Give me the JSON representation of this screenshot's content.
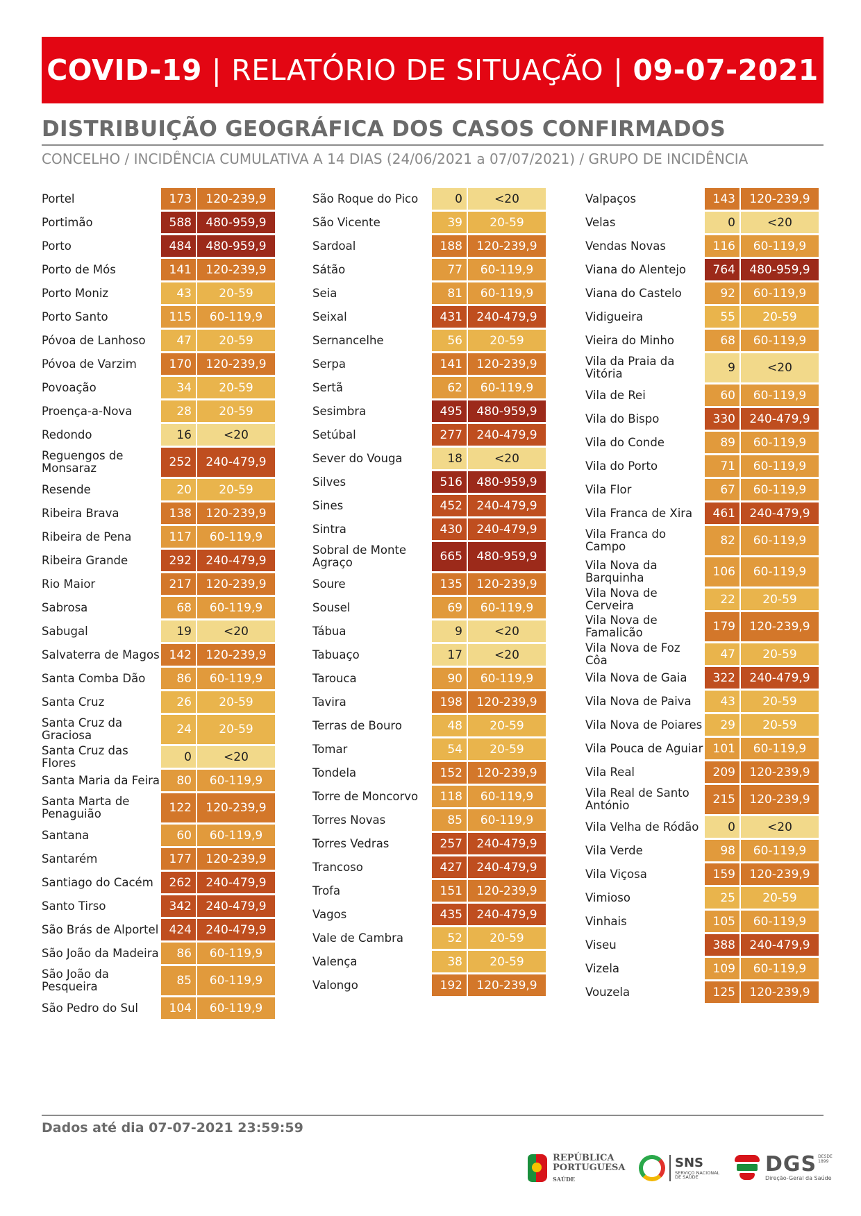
{
  "header": {
    "part1": "COVID-19",
    "sep": "|",
    "part2": "RELATÓRIO DE SITUAÇÃO",
    "part3": "09-07-2021"
  },
  "section": {
    "title": "DISTRIBUIÇÃO GEOGRÁFICA DOS CASOS CONFIRMADOS",
    "subtitle": "CONCELHO / INCIDÊNCIA CUMULATIVA A 14 DIAS (24/06/2021 a 07/07/2021) / GRUPO DE INCIDÊNCIA"
  },
  "colors": {
    "<20": {
      "bg": "#f2d98a",
      "fg": "#222222"
    },
    "20-59": {
      "bg": "#e9b44c",
      "fg": "#ffffff"
    },
    "60-119,9": {
      "bg": "#e19a3c",
      "fg": "#ffffff"
    },
    "120-239,9": {
      "bg": "#d3772a",
      "fg": "#ffffff"
    },
    "240-479,9": {
      "bg": "#bf4e1f",
      "fg": "#ffffff"
    },
    "480-959,9": {
      "bg": "#9c2a1a",
      "fg": "#ffffff"
    }
  },
  "columns": [
    {
      "rows": [
        {
          "name": "Portel",
          "value": "173",
          "group": "120-239,9"
        },
        {
          "name": "Portimão",
          "value": "588",
          "group": "480-959,9"
        },
        {
          "name": "Porto",
          "value": "484",
          "group": "480-959,9"
        },
        {
          "name": "Porto de Mós",
          "value": "141",
          "group": "120-239,9"
        },
        {
          "name": "Porto Moniz",
          "value": "43",
          "group": "20-59"
        },
        {
          "name": "Porto Santo",
          "value": "115",
          "group": "60-119,9"
        },
        {
          "name": "Póvoa de Lanhoso",
          "value": "47",
          "group": "20-59"
        },
        {
          "name": "Póvoa de Varzim",
          "value": "170",
          "group": "120-239,9"
        },
        {
          "name": "Povoação",
          "value": "34",
          "group": "20-59"
        },
        {
          "name": "Proença-a-Nova",
          "value": "28",
          "group": "20-59"
        },
        {
          "name": "Redondo",
          "value": "16",
          "group": "<20"
        },
        {
          "name": "Reguengos de Monsaraz",
          "value": "252",
          "group": "240-479,9",
          "tall": true
        },
        {
          "name": "Resende",
          "value": "20",
          "group": "20-59"
        },
        {
          "name": "Ribeira Brava",
          "value": "138",
          "group": "120-239,9"
        },
        {
          "name": "Ribeira de Pena",
          "value": "117",
          "group": "60-119,9"
        },
        {
          "name": "Ribeira Grande",
          "value": "292",
          "group": "240-479,9"
        },
        {
          "name": "Rio Maior",
          "value": "217",
          "group": "120-239,9"
        },
        {
          "name": "Sabrosa",
          "value": "68",
          "group": "60-119,9"
        },
        {
          "name": "Sabugal",
          "value": "19",
          "group": "<20"
        },
        {
          "name": "Salvaterra de Magos",
          "value": "142",
          "group": "120-239,9"
        },
        {
          "name": "Santa Comba Dão",
          "value": "86",
          "group": "60-119,9"
        },
        {
          "name": "Santa Cruz",
          "value": "26",
          "group": "20-59"
        },
        {
          "name": "Santa Cruz da Graciosa",
          "value": "24",
          "group": "20-59",
          "tall": true
        },
        {
          "name": "Santa Cruz das Flores",
          "value": "0",
          "group": "<20"
        },
        {
          "name": "Santa Maria da Feira",
          "value": "80",
          "group": "60-119,9"
        },
        {
          "name": "Santa Marta de Penaguião",
          "value": "122",
          "group": "120-239,9",
          "tall": true
        },
        {
          "name": "Santana",
          "value": "60",
          "group": "60-119,9"
        },
        {
          "name": "Santarém",
          "value": "177",
          "group": "120-239,9"
        },
        {
          "name": "Santiago do Cacém",
          "value": "262",
          "group": "240-479,9"
        },
        {
          "name": "Santo Tirso",
          "value": "342",
          "group": "240-479,9"
        },
        {
          "name": "São Brás de Alportel",
          "value": "424",
          "group": "240-479,9"
        },
        {
          "name": "São João da Madeira",
          "value": "86",
          "group": "60-119,9"
        },
        {
          "name": "São João da Pesqueira",
          "value": "85",
          "group": "60-119,9",
          "tall": true
        },
        {
          "name": "São Pedro do Sul",
          "value": "104",
          "group": "60-119,9"
        }
      ]
    },
    {
      "rows": [
        {
          "name": "São Roque do Pico",
          "value": "0",
          "group": "<20"
        },
        {
          "name": "São Vicente",
          "value": "39",
          "group": "20-59"
        },
        {
          "name": "Sardoal",
          "value": "188",
          "group": "120-239,9"
        },
        {
          "name": "Sátão",
          "value": "77",
          "group": "60-119,9"
        },
        {
          "name": "Seia",
          "value": "81",
          "group": "60-119,9"
        },
        {
          "name": "Seixal",
          "value": "431",
          "group": "240-479,9"
        },
        {
          "name": "Sernancelhe",
          "value": "56",
          "group": "20-59"
        },
        {
          "name": "Serpa",
          "value": "141",
          "group": "120-239,9"
        },
        {
          "name": "Sertã",
          "value": "62",
          "group": "60-119,9"
        },
        {
          "name": "Sesimbra",
          "value": "495",
          "group": "480-959,9"
        },
        {
          "name": "Setúbal",
          "value": "277",
          "group": "240-479,9"
        },
        {
          "name": "Sever do Vouga",
          "value": "18",
          "group": "<20"
        },
        {
          "name": "Silves",
          "value": "516",
          "group": "480-959,9"
        },
        {
          "name": "Sines",
          "value": "452",
          "group": "240-479,9"
        },
        {
          "name": "Sintra",
          "value": "430",
          "group": "240-479,9"
        },
        {
          "name": "Sobral de Monte Agraço",
          "value": "665",
          "group": "480-959,9",
          "tall": true
        },
        {
          "name": "Soure",
          "value": "135",
          "group": "120-239,9"
        },
        {
          "name": "Sousel",
          "value": "69",
          "group": "60-119,9"
        },
        {
          "name": "Tábua",
          "value": "9",
          "group": "<20"
        },
        {
          "name": "Tabuaço",
          "value": "17",
          "group": "<20"
        },
        {
          "name": "Tarouca",
          "value": "90",
          "group": "60-119,9"
        },
        {
          "name": "Tavira",
          "value": "198",
          "group": "120-239,9"
        },
        {
          "name": "Terras de Bouro",
          "value": "48",
          "group": "20-59"
        },
        {
          "name": "Tomar",
          "value": "54",
          "group": "20-59"
        },
        {
          "name": "Tondela",
          "value": "152",
          "group": "120-239,9"
        },
        {
          "name": "Torre de Moncorvo",
          "value": "118",
          "group": "60-119,9"
        },
        {
          "name": "Torres Novas",
          "value": "85",
          "group": "60-119,9"
        },
        {
          "name": "Torres Vedras",
          "value": "257",
          "group": "240-479,9"
        },
        {
          "name": "Trancoso",
          "value": "427",
          "group": "240-479,9"
        },
        {
          "name": "Trofa",
          "value": "151",
          "group": "120-239,9"
        },
        {
          "name": "Vagos",
          "value": "435",
          "group": "240-479,9"
        },
        {
          "name": "Vale de Cambra",
          "value": "52",
          "group": "20-59"
        },
        {
          "name": "Valença",
          "value": "38",
          "group": "20-59"
        },
        {
          "name": "Valongo",
          "value": "192",
          "group": "120-239,9"
        }
      ]
    },
    {
      "rows": [
        {
          "name": "Valpaços",
          "value": "143",
          "group": "120-239,9"
        },
        {
          "name": "Velas",
          "value": "0",
          "group": "<20"
        },
        {
          "name": "Vendas Novas",
          "value": "116",
          "group": "60-119,9"
        },
        {
          "name": "Viana do Alentejo",
          "value": "764",
          "group": "480-959,9"
        },
        {
          "name": "Viana do Castelo",
          "value": "92",
          "group": "60-119,9"
        },
        {
          "name": "Vidigueira",
          "value": "55",
          "group": "20-59"
        },
        {
          "name": "Vieira do Minho",
          "value": "68",
          "group": "60-119,9"
        },
        {
          "name": "Vila da Praia da Vitória",
          "value": "9",
          "group": "<20",
          "tall": true
        },
        {
          "name": "Vila de Rei",
          "value": "60",
          "group": "60-119,9"
        },
        {
          "name": "Vila do Bispo",
          "value": "330",
          "group": "240-479,9"
        },
        {
          "name": "Vila do Conde",
          "value": "89",
          "group": "60-119,9"
        },
        {
          "name": "Vila do Porto",
          "value": "71",
          "group": "60-119,9"
        },
        {
          "name": "Vila Flor",
          "value": "67",
          "group": "60-119,9"
        },
        {
          "name": "Vila Franca de Xira",
          "value": "461",
          "group": "240-479,9"
        },
        {
          "name": "Vila Franca do Campo",
          "value": "82",
          "group": "60-119,9",
          "tall": true
        },
        {
          "name": "Vila Nova da Barquinha",
          "value": "106",
          "group": "60-119,9",
          "tall": true
        },
        {
          "name": "Vila Nova de Cerveira",
          "value": "22",
          "group": "20-59"
        },
        {
          "name": "Vila Nova de Famalicão",
          "value": "179",
          "group": "120-239,9",
          "tall": true
        },
        {
          "name": "Vila Nova de Foz Côa",
          "value": "47",
          "group": "20-59"
        },
        {
          "name": "Vila Nova de Gaia",
          "value": "322",
          "group": "240-479,9"
        },
        {
          "name": "Vila Nova de Paiva",
          "value": "43",
          "group": "20-59"
        },
        {
          "name": "Vila Nova de Poiares",
          "value": "29",
          "group": "20-59"
        },
        {
          "name": "Vila Pouca de Aguiar",
          "value": "101",
          "group": "60-119,9"
        },
        {
          "name": "Vila Real",
          "value": "209",
          "group": "120-239,9"
        },
        {
          "name": "Vila Real de Santo António",
          "value": "215",
          "group": "120-239,9",
          "tall": true
        },
        {
          "name": "Vila Velha de Ródão",
          "value": "0",
          "group": "<20"
        },
        {
          "name": "Vila Verde",
          "value": "98",
          "group": "60-119,9"
        },
        {
          "name": "Vila Viçosa",
          "value": "159",
          "group": "120-239,9"
        },
        {
          "name": "Vimioso",
          "value": "25",
          "group": "20-59"
        },
        {
          "name": "Vinhais",
          "value": "105",
          "group": "60-119,9"
        },
        {
          "name": "Viseu",
          "value": "388",
          "group": "240-479,9"
        },
        {
          "name": "Vizela",
          "value": "109",
          "group": "60-119,9"
        },
        {
          "name": "Vouzela",
          "value": "125",
          "group": "120-239,9"
        }
      ]
    }
  ],
  "footer": {
    "data_note": "Dados até dia 07-07-2021 23:59:59"
  },
  "logos": {
    "republica": {
      "line1": "REPÚBLICA",
      "line2": "PORTUGUESA",
      "line3": "SAÚDE"
    },
    "sns": {
      "main": "SNS",
      "sub1": "SERVIÇO NACIONAL",
      "sub2": "DE SAÚDE"
    },
    "dgs": {
      "main": "DGS",
      "since1": "DESDE",
      "since2": "1899",
      "sub": "Direção-Geral da Saúde"
    }
  }
}
